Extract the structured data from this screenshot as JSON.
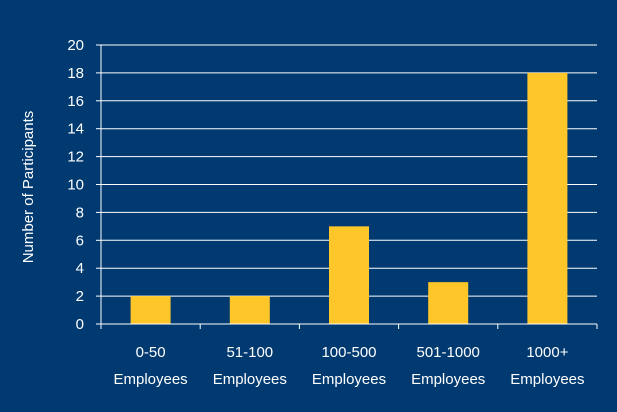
{
  "chart_data": {
    "type": "bar",
    "categories": [
      [
        "0-50",
        "Employees"
      ],
      [
        "51-100",
        "Employees"
      ],
      [
        "100-500",
        "Employees"
      ],
      [
        "501-1000",
        "Employees"
      ],
      [
        "1000+",
        "Employees"
      ]
    ],
    "values": [
      2,
      2,
      7,
      3,
      18
    ],
    "title": "",
    "xlabel": "",
    "ylabel": "Number of Participants",
    "ylim": [
      0,
      20
    ],
    "yticks": [
      0,
      2,
      4,
      6,
      8,
      10,
      12,
      14,
      16,
      18,
      20
    ],
    "grid": true,
    "legend": "none"
  },
  "colors": {
    "background": "#003a70",
    "bar": "#ffc629",
    "grid": "#ffffff",
    "text": "#ffffff"
  }
}
